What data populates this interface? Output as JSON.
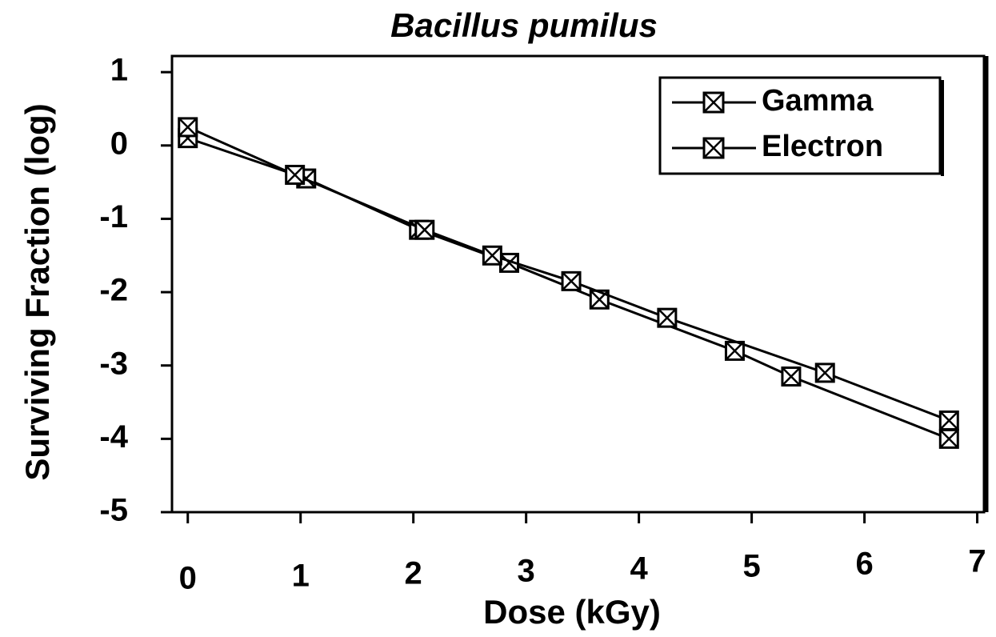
{
  "chart_data": {
    "type": "line",
    "title": "Bacillus pumilus",
    "xlabel": "Dose (kGy)",
    "ylabel": "Surviving Fraction (log)",
    "series": [
      {
        "name": "Gamma",
        "color": "#000000",
        "x": [
          0,
          1.05,
          2.05,
          2.85,
          3.65,
          4.85,
          5.35,
          6.75
        ],
        "values": [
          0.1,
          -0.45,
          -1.15,
          -1.6,
          -2.1,
          -2.8,
          -3.15,
          -4.0
        ]
      },
      {
        "name": "Electron",
        "color": "#000000",
        "x": [
          0,
          0.95,
          2.1,
          2.7,
          3.4,
          4.25,
          5.65,
          6.75
        ],
        "values": [
          0.25,
          -0.4,
          -1.15,
          -1.5,
          -1.85,
          -2.35,
          -3.1,
          -3.75
        ]
      }
    ],
    "xlim": [
      -0.14,
      7.06
    ],
    "xticks": [
      0,
      1,
      2,
      3,
      4,
      5,
      6,
      7
    ],
    "ylim": [
      -5,
      1.22
    ],
    "yticks": [
      1,
      0,
      -1,
      -2,
      -3,
      -4,
      -5
    ],
    "legend": "upper right",
    "grid": false
  }
}
